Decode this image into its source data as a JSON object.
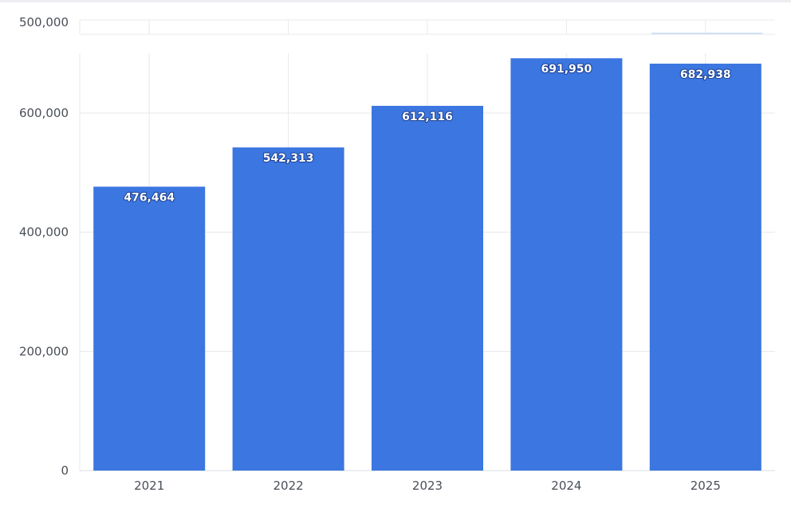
{
  "chart_data": {
    "type": "bar",
    "categories": [
      "2021",
      "2022",
      "2023",
      "2024",
      "2025"
    ],
    "values": [
      476464,
      542313,
      612116,
      691950,
      682938
    ],
    "data_labels": [
      "476,464",
      "542,313",
      "612,116",
      "691,950",
      "682,938"
    ],
    "title": "",
    "xlabel": "",
    "ylabel": "",
    "ylim": [
      0,
      700000
    ],
    "y_ticks": [
      {
        "value": 0,
        "label": "0"
      },
      {
        "value": 200000,
        "label": "200,000"
      },
      {
        "value": 400000,
        "label": "400,000"
      },
      {
        "value": 600000,
        "label": "600,000"
      }
    ],
    "clipped_tick": {
      "value": 500000,
      "label": "500,000"
    },
    "grid": true,
    "legend": "none",
    "bar_color": "#3b76e1",
    "grid_color": "#e6e8eb",
    "axis_text_color": "#4a4f57"
  }
}
